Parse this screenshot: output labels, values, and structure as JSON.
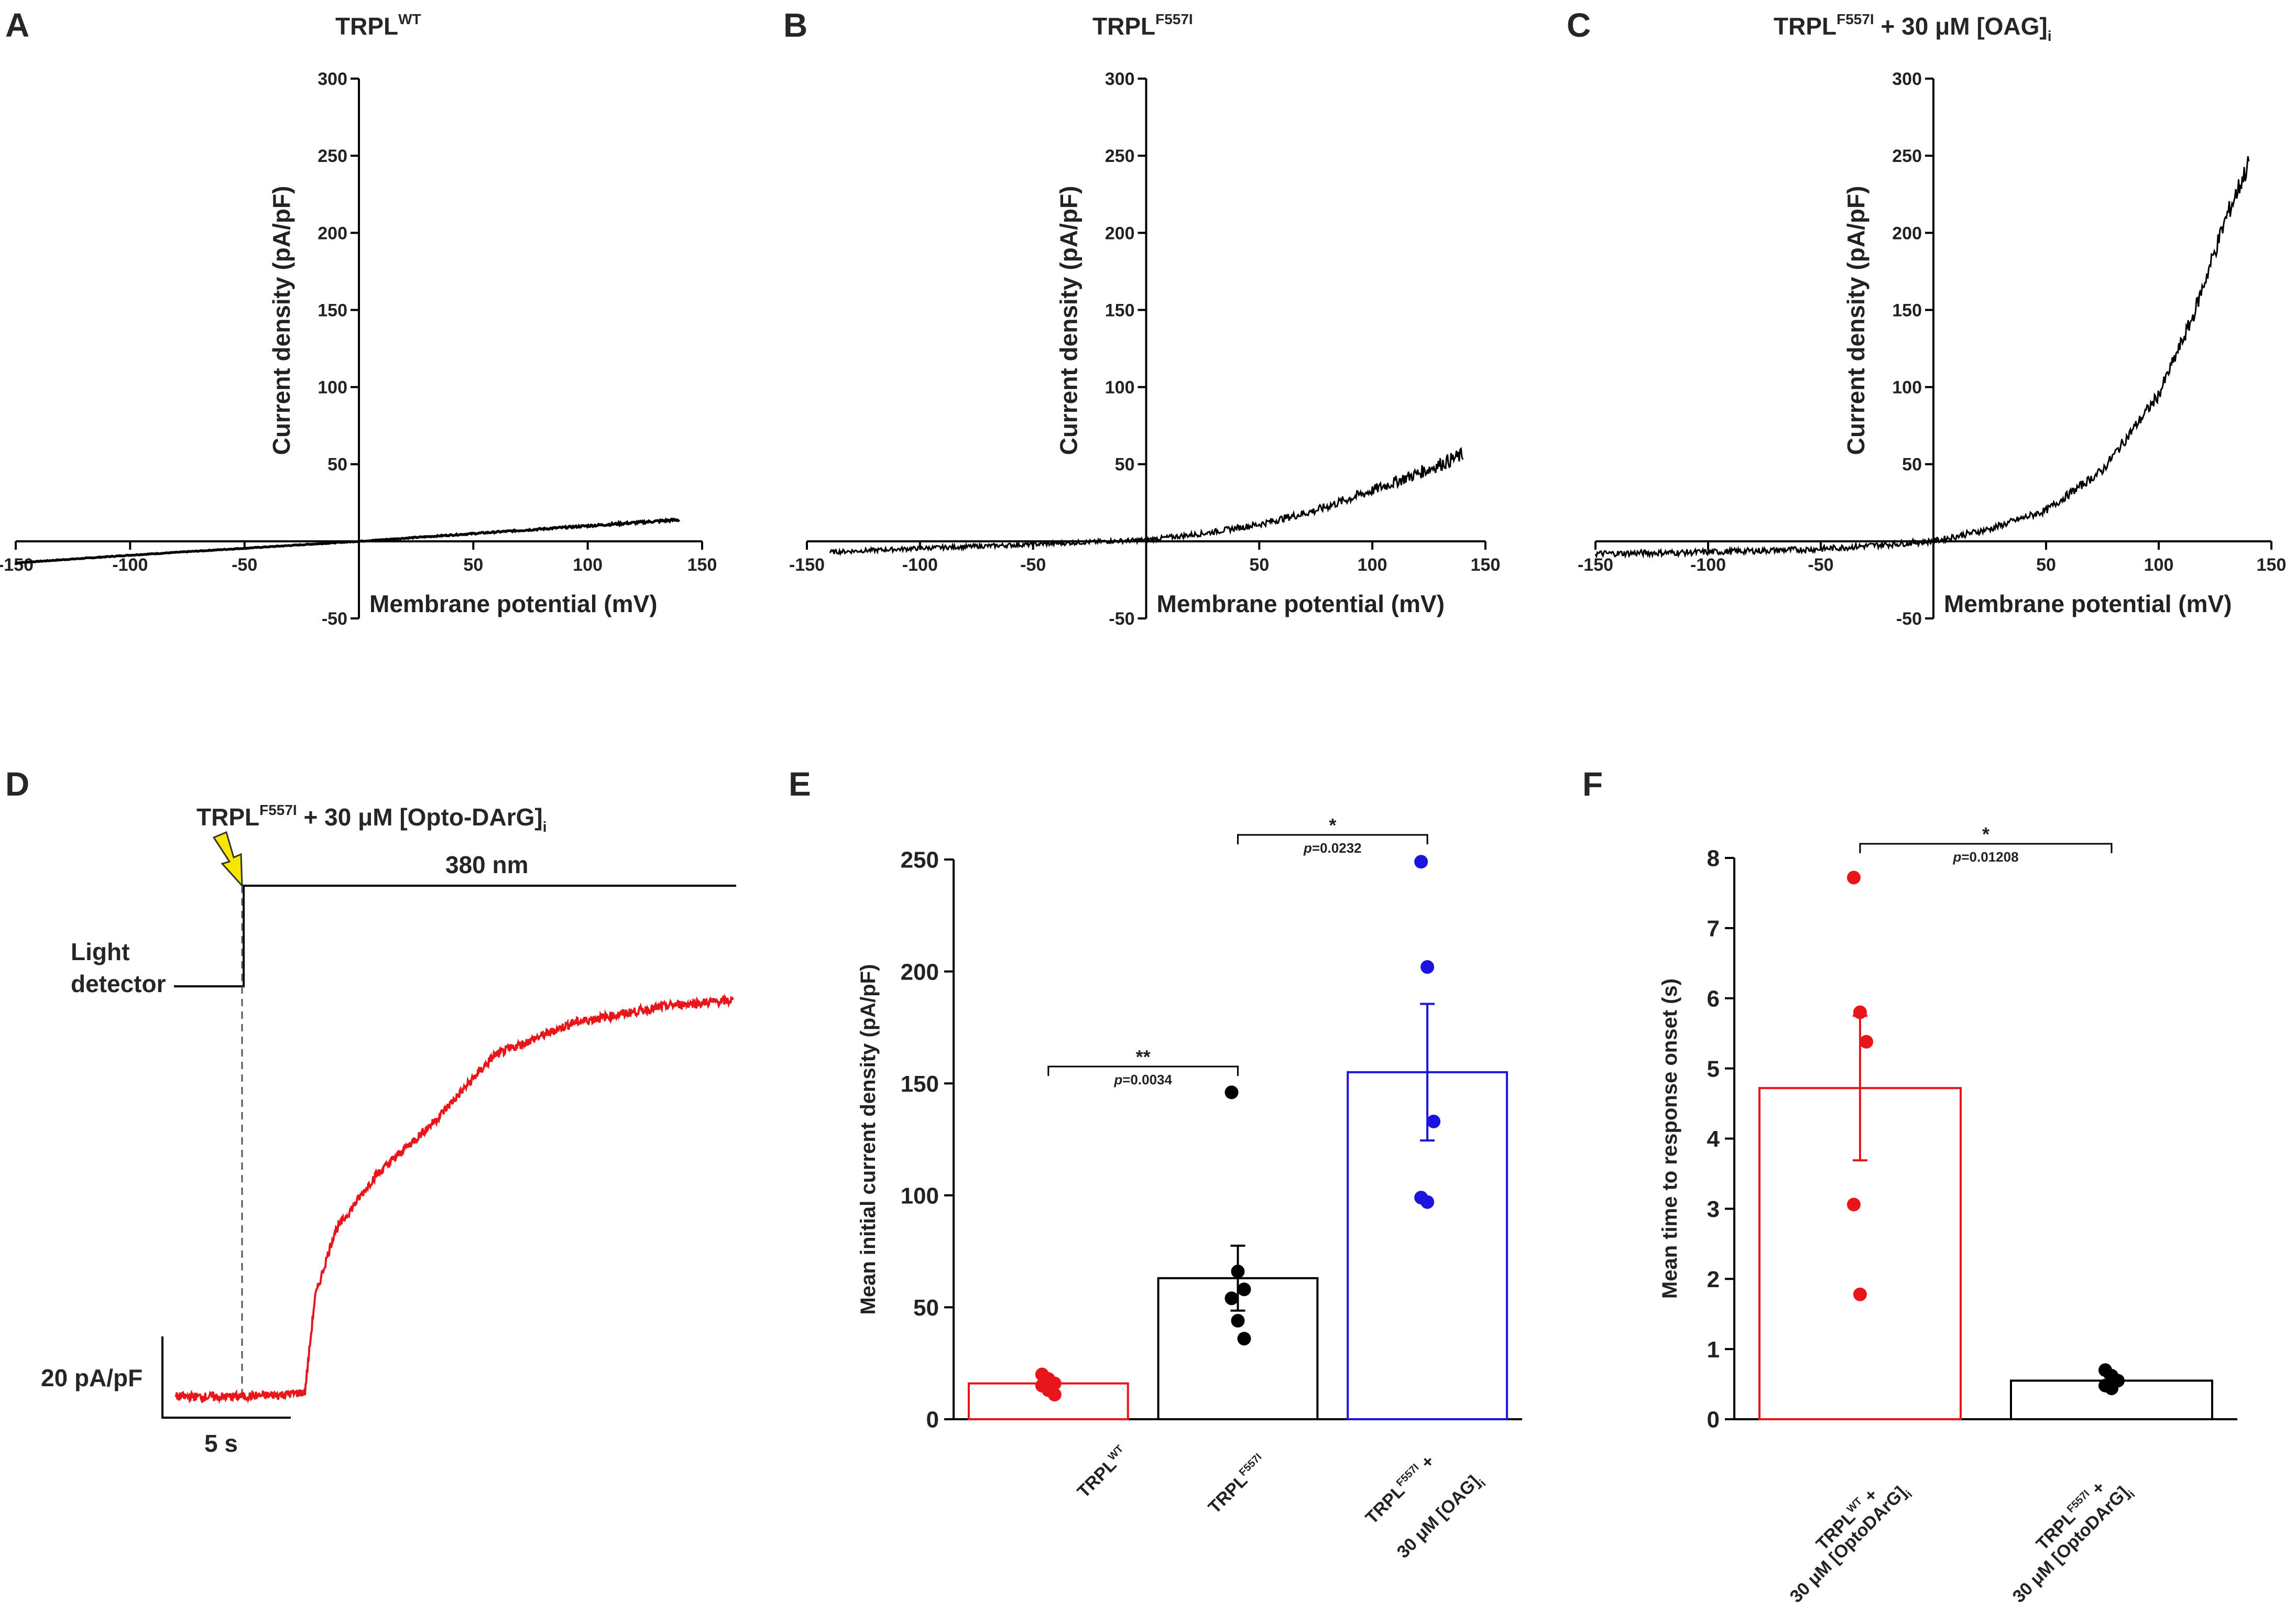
{
  "panels": {
    "A": "A",
    "B": "B",
    "C": "C",
    "D": "D",
    "E": "E",
    "F": "F"
  },
  "titles": {
    "A": {
      "main": "TRPL",
      "sup": "WT",
      "rest": ""
    },
    "B": {
      "main": "TRPL",
      "sup": "F557I",
      "rest": ""
    },
    "C": {
      "main": "TRPL",
      "sup": "F557I",
      "rest": " + 30 μM [OAG]",
      "sub": "i"
    },
    "D": {
      "main": "TRPL",
      "sup": "F557I",
      "rest": " + 30 μM [Opto-DArG]",
      "sub": "i"
    }
  },
  "colors": {
    "red": "#e8151b",
    "blue": "#1a14e0",
    "black": "#000000",
    "arrow": "#f7e600"
  },
  "chart_data": [
    {
      "id": "A",
      "type": "line",
      "title": "TRPL^WT",
      "xlabel": "Membrane potential (mV)",
      "ylabel": "Current density (pA/pF)",
      "xlim": [
        -150,
        150
      ],
      "ylim": [
        -50,
        300
      ],
      "xticks": [
        -150,
        -100,
        -50,
        50,
        100,
        150
      ],
      "yticks": [
        -50,
        50,
        100,
        150,
        200,
        250,
        300
      ],
      "series": [
        {
          "x": [
            -150,
            -100,
            -50,
            0,
            50,
            100,
            140
          ],
          "y": [
            -14,
            -9,
            -4.5,
            0,
            5,
            10,
            14
          ],
          "noise": 0.6
        }
      ]
    },
    {
      "id": "B",
      "type": "line",
      "title": "TRPL^F557I",
      "xlabel": "Membrane potential (mV)",
      "ylabel": "Current density (pA/pF)",
      "xlim": [
        -150,
        150
      ],
      "ylim": [
        -50,
        300
      ],
      "xticks": [
        -150,
        -100,
        -50,
        50,
        100,
        150
      ],
      "yticks": [
        -50,
        50,
        100,
        150,
        200,
        250,
        300
      ],
      "series": [
        {
          "x": [
            -140,
            -100,
            -50,
            0,
            25,
            50,
            75,
            100,
            120,
            140
          ],
          "y": [
            -7,
            -4.5,
            -2,
            1,
            5,
            11,
            20,
            33,
            44,
            56
          ],
          "noise": 3.5
        }
      ]
    },
    {
      "id": "C",
      "type": "line",
      "title": "TRPL^F557I + 30 μM [OAG]i",
      "xlabel": "Membrane potential (mV)",
      "ylabel": "Current density (pA/pF)",
      "xlim": [
        -150,
        150
      ],
      "ylim": [
        -50,
        300
      ],
      "xticks": [
        -150,
        -100,
        -50,
        50,
        100,
        150
      ],
      "yticks": [
        -50,
        50,
        100,
        150,
        200,
        250,
        300
      ],
      "series": [
        {
          "x": [
            -150,
            -100,
            -50,
            0,
            25,
            50,
            75,
            100,
            115,
            130,
            140
          ],
          "y": [
            -8,
            -7,
            -5,
            0,
            8,
            20,
            46,
            95,
            145,
            210,
            245
          ],
          "noise": 5
        }
      ]
    },
    {
      "id": "D",
      "type": "line",
      "annotations": [
        "380 nm",
        "Light detector",
        "20 pA/pF",
        "5 s"
      ],
      "series": [
        {
          "name": "",
          "x_s": [
            0,
            3,
            5.5,
            6.5,
            7,
            8,
            10,
            13,
            16,
            20,
            25,
            28
          ],
          "y_pApF": [
            0,
            0,
            1,
            2,
            45,
            75,
            100,
            125,
            155,
            170,
            178,
            180
          ]
        }
      ]
    },
    {
      "id": "E",
      "type": "bar",
      "ylabel": "Mean initial current density (pA/pF)",
      "ylim": [
        0,
        250
      ],
      "yticks": [
        0,
        50,
        100,
        150,
        200,
        250
      ],
      "categories": [
        "TRPL WT",
        "TRPL F557I",
        "TRPL F557I + 30 μM [OAG]i"
      ],
      "values": [
        16,
        63,
        155
      ],
      "sem": [
        1.5,
        14.5,
        30.5
      ],
      "points": [
        [
          20,
          18,
          16,
          15,
          13,
          11
        ],
        [
          146,
          66,
          58,
          54,
          44,
          36
        ],
        [
          249,
          202,
          133,
          99,
          97
        ]
      ],
      "comparisons": [
        {
          "a": 0,
          "b": 1,
          "stars": "**",
          "p": "=0.0034"
        },
        {
          "a": 1,
          "b": 2,
          "stars": "*",
          "p": "=0.0232"
        }
      ]
    },
    {
      "id": "F",
      "type": "bar",
      "ylabel": "Mean time to response onset (s)",
      "ylim": [
        0,
        8
      ],
      "yticks": [
        0,
        1,
        2,
        3,
        4,
        5,
        6,
        7,
        8
      ],
      "categories": [
        "TRPL WT + 30 μM [OptoDArG]i",
        "TRPL F557I + 30 μM [OptoDArG]i"
      ],
      "values": [
        4.72,
        0.55
      ],
      "sem": [
        1.03,
        0.05
      ],
      "points": [
        [
          7.72,
          5.8,
          5.38,
          3.06,
          1.78
        ],
        [
          0.7,
          0.62,
          0.55,
          0.48,
          0.44
        ]
      ],
      "comparisons": [
        {
          "a": 0,
          "b": 1,
          "stars": "*",
          "p": "=0.01208"
        }
      ]
    }
  ],
  "cat_labels": {
    "E0": {
      "main": "TRPL",
      "sup": "WT"
    },
    "E1": {
      "main": "TRPL",
      "sup": "F557I"
    },
    "E2a": {
      "main": "TRPL",
      "sup": "F557I",
      "rest": " +"
    },
    "E2b": {
      "main": "30 μM [OAG]",
      "sub": "i"
    },
    "F0a": {
      "main": "TRPL",
      "sup": "WT",
      "rest": " +"
    },
    "F0b": {
      "main": "30 μM [OptoDArG]",
      "sub": "i"
    },
    "F1a": {
      "main": "TRPL",
      "sup": "F557I",
      "rest": " +"
    },
    "F1b": {
      "main": "30 μM [OptoDArG]",
      "sub": "i"
    }
  },
  "p_prefix": "p"
}
